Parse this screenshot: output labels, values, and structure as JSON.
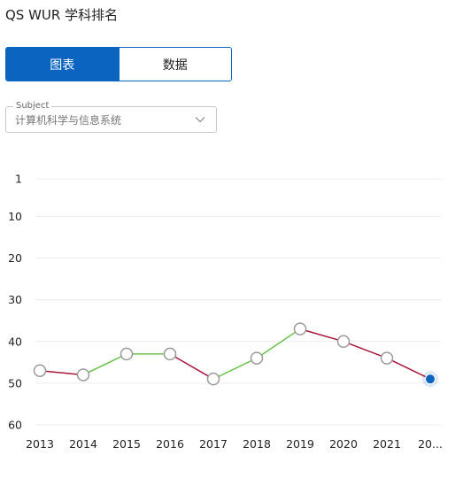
{
  "page": {
    "title": "QS WUR 学科排名"
  },
  "view_toggle": {
    "chart_label": "图表",
    "data_label": "数据",
    "active": "chart"
  },
  "subject_select": {
    "legend": "Subject",
    "value": "计算机科学与信息系统",
    "icon": "chevron-down-icon"
  },
  "colors": {
    "accent": "#0b64c0",
    "improving": "#6cc04a",
    "declining": "#a8183a",
    "marker_stroke": "#9a9a9a",
    "current_marker": "#0b64c0"
  },
  "chart_data": {
    "type": "line",
    "x": [
      "2013",
      "2014",
      "2015",
      "2016",
      "2017",
      "2018",
      "2019",
      "2020",
      "2021",
      "20..."
    ],
    "values": [
      47,
      48,
      43,
      43,
      49,
      44,
      37,
      40,
      44,
      49
    ],
    "y_ticks": [
      1,
      10,
      20,
      30,
      40,
      50,
      60
    ],
    "ylim": [
      60,
      1
    ],
    "y_reversed": true,
    "grid": true,
    "highlight_last": true,
    "title": "",
    "xlabel": "",
    "ylabel": ""
  }
}
